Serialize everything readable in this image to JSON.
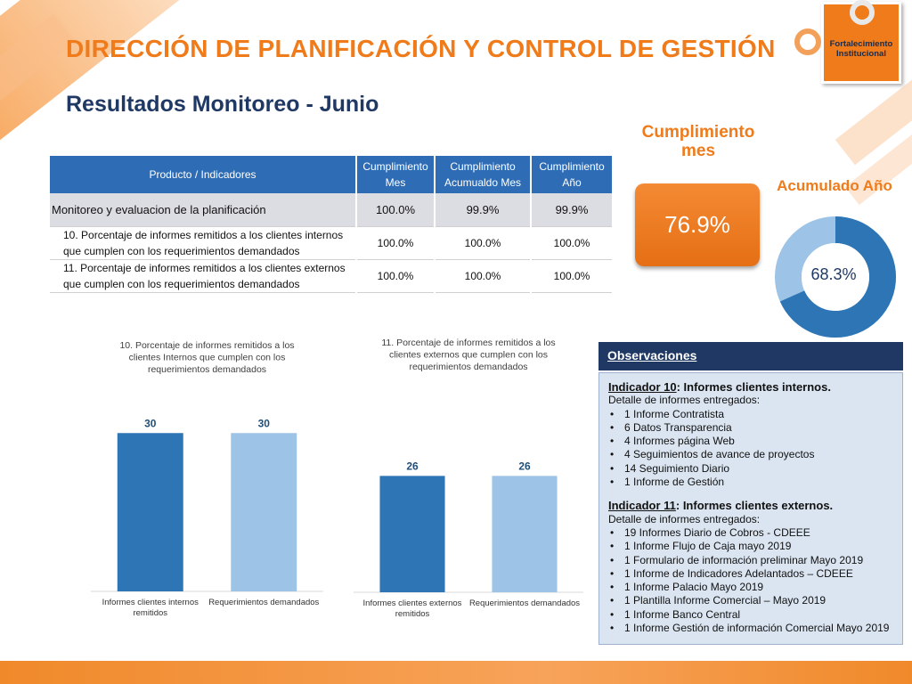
{
  "title": "DIRECCIÓN DE PLANIFICACIÓN Y CONTROL DE GESTIÓN",
  "subtitle": "Resultados Monitoreo - Junio",
  "logo": {
    "text": "Fortalecimiento Institucional",
    "color": "#ef7b1a"
  },
  "table": {
    "headers": [
      "Producto / Indicadores",
      "Cumplimiento Mes",
      "Cumplimiento Acumualdo Mes",
      "Cumplimiento Año"
    ],
    "rows": [
      {
        "label": "Monitoreo y evaluacion de la planificación",
        "mes": "100.0%",
        "acum": "99.9%",
        "anio": "99.9%"
      },
      {
        "label": "10. Porcentaje de informes remitidos a los clientes internos que cumplen con los requerimientos demandados",
        "mes": "100.0%",
        "acum": "100.0%",
        "anio": "100.0%"
      },
      {
        "label": "11. Porcentaje de informes remitidos a los clientes externos que cumplen con los requerimientos demandados",
        "mes": "100.0%",
        "acum": "100.0%",
        "anio": "100.0%"
      }
    ]
  },
  "kpi_mes": {
    "label": "Cumplimiento mes",
    "value": "76.9%"
  },
  "kpi_anio": {
    "label": "Acumulado Año",
    "value": "68.3%",
    "fraction": 0.683
  },
  "chart_data": [
    {
      "type": "bar",
      "title": "10. Porcentaje de informes remitidos a los clientes Internos que cumplen con los requerimientos demandados",
      "categories": [
        "Informes clientes internos remitidos",
        "Requerimientos demandados"
      ],
      "values": [
        30,
        30
      ],
      "colors": [
        "#2e75b6",
        "#9dc3e6"
      ],
      "ylim": [
        0,
        40
      ]
    },
    {
      "type": "bar",
      "title": "11. Porcentaje de informes remitidos a los clientes externos que cumplen con los requerimientos demandados",
      "categories": [
        "Informes clientes externos remitidos",
        "Requerimientos demandados"
      ],
      "values": [
        26,
        26
      ],
      "colors": [
        "#2e75b6",
        "#9dc3e6"
      ],
      "ylim": [
        0,
        40
      ]
    }
  ],
  "observaciones": {
    "header": "Observaciones",
    "ind10": {
      "tag": "Indicador 10",
      "rest": ": Informes clientes internos.",
      "detalle": "Detalle de informes entregados:",
      "items": [
        "1 Informe Contratista",
        "6 Datos Transparencia",
        "4 Informes página Web",
        "4 Seguimientos de avance de proyectos",
        "14 Seguimiento Diario",
        "1 Informe de Gestión"
      ]
    },
    "ind11": {
      "tag": "Indicador 11",
      "rest": ": Informes clientes externos.",
      "detalle": "Detalle de informes entregados:",
      "items": [
        "19 Informes Diario de Cobros  - CDEEE",
        "1 Informe Flujo de Caja mayo 2019",
        "1 Formulario de información preliminar Mayo 2019",
        "1 Informe de Indicadores Adelantados – CDEEE",
        "1 Informe Palacio Mayo 2019",
        "1 Plantilla Informe Comercial – Mayo 2019",
        "1 Informe Banco Central",
        "1 Informe Gestión de información Comercial Mayo 2019"
      ]
    }
  },
  "colors": {
    "accent": "#ef7b1a",
    "navy": "#1f3864",
    "blue": "#2e75b6",
    "light_blue": "#9dc3e6"
  }
}
